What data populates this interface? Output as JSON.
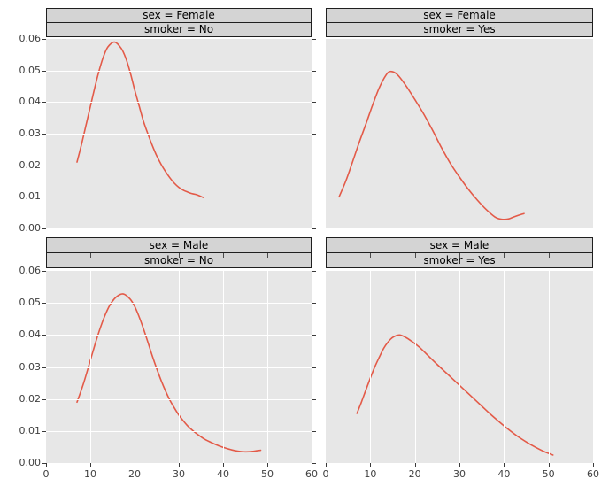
{
  "figure": {
    "colors": {
      "page_background": "#ffffff",
      "panel_background": "#e7e7e7",
      "strip_background": "#d4d4d4",
      "strip_border": "#1f1f1f",
      "gridline": "#ffffff",
      "curve": "#e35a48",
      "tick_mark": "#3a3a3a",
      "tick_label": "#3f3f3f",
      "strip_text": "#000000"
    }
  },
  "axes": {
    "xlim": [
      0,
      60
    ],
    "ylim": [
      0,
      0.06
    ],
    "xticks": [
      0,
      10,
      20,
      30,
      40,
      50,
      60
    ],
    "xtick_labels": [
      "0",
      "10",
      "20",
      "30",
      "40",
      "50",
      "60"
    ],
    "yticks": [
      0,
      0.01,
      0.02,
      0.03,
      0.04,
      0.05,
      0.06
    ],
    "ytick_labels": [
      "0.00",
      "0.01",
      "0.02",
      "0.03",
      "0.04",
      "0.05",
      "0.06"
    ]
  },
  "chart_data": [
    {
      "type": "line",
      "panel": "top-left",
      "facet_row_label": "sex = Female",
      "facet_col_label": "smoker = No",
      "xlim": [
        0,
        60
      ],
      "ylim": [
        0,
        0.06
      ],
      "grid_horizontal": true,
      "grid_vertical": false,
      "x": [
        7,
        8,
        9,
        10,
        11,
        12,
        13,
        14,
        15.5,
        17,
        18,
        19,
        20,
        21,
        22,
        23,
        24,
        25,
        26,
        27,
        28,
        29,
        30,
        31,
        32,
        33,
        34,
        35.5
      ],
      "y": [
        0.021,
        0.0265,
        0.0325,
        0.0385,
        0.0445,
        0.05,
        0.0545,
        0.0575,
        0.059,
        0.057,
        0.054,
        0.0495,
        0.044,
        0.039,
        0.034,
        0.03,
        0.0263,
        0.023,
        0.0203,
        0.018,
        0.016,
        0.0143,
        0.013,
        0.0121,
        0.0115,
        0.011,
        0.0107,
        0.0098
      ]
    },
    {
      "type": "line",
      "panel": "top-right",
      "facet_row_label": "sex = Female",
      "facet_col_label": "smoker = Yes",
      "xlim": [
        0,
        60
      ],
      "ylim": [
        0,
        0.06
      ],
      "grid_horizontal": false,
      "grid_vertical": false,
      "x": [
        3,
        4.5,
        6,
        7.5,
        9,
        10.5,
        12,
        13.5,
        14.5,
        16,
        18,
        20,
        22,
        24,
        26,
        28,
        30,
        32,
        34,
        36,
        38,
        39.5,
        41,
        42.5,
        44.5
      ],
      "y": [
        0.01,
        0.015,
        0.021,
        0.0272,
        0.033,
        0.039,
        0.0445,
        0.0485,
        0.0497,
        0.0488,
        0.0452,
        0.0408,
        0.0362,
        0.031,
        0.0255,
        0.0205,
        0.0163,
        0.0124,
        0.009,
        0.006,
        0.0036,
        0.0029,
        0.003,
        0.0038,
        0.0047
      ]
    },
    {
      "type": "line",
      "panel": "bottom-left",
      "facet_row_label": "sex = Male",
      "facet_col_label": "smoker = No",
      "xlim": [
        0,
        60
      ],
      "ylim": [
        0,
        0.06
      ],
      "grid_horizontal": true,
      "grid_vertical": true,
      "x": [
        7,
        8.5,
        10,
        11.5,
        13,
        14.5,
        16,
        17.5,
        19,
        20,
        21,
        22,
        23,
        24,
        25,
        26,
        27,
        28,
        29,
        30,
        31,
        32,
        33,
        34,
        35,
        36,
        37.5,
        39,
        40.5,
        42,
        43.5,
        45,
        46.5,
        48.5
      ],
      "y": [
        0.019,
        0.025,
        0.032,
        0.039,
        0.045,
        0.0495,
        0.052,
        0.0528,
        0.0512,
        0.049,
        0.0458,
        0.042,
        0.0378,
        0.0335,
        0.0295,
        0.0258,
        0.0225,
        0.0196,
        0.0172,
        0.015,
        0.0132,
        0.0116,
        0.0103,
        0.0092,
        0.0082,
        0.0073,
        0.0063,
        0.0054,
        0.0047,
        0.0041,
        0.0037,
        0.0035,
        0.0036,
        0.004
      ]
    },
    {
      "type": "line",
      "panel": "bottom-right",
      "facet_row_label": "sex = Male",
      "facet_col_label": "smoker = Yes",
      "xlim": [
        0,
        60
      ],
      "ylim": [
        0,
        0.06
      ],
      "grid_horizontal": false,
      "grid_vertical": true,
      "x": [
        7,
        8,
        9,
        10,
        11,
        12,
        13,
        14,
        15,
        16.5,
        18,
        19.5,
        21,
        23,
        25,
        27,
        29,
        31,
        33,
        35,
        37,
        39,
        41,
        43,
        45,
        47,
        49,
        51
      ],
      "y": [
        0.0155,
        0.019,
        0.0228,
        0.0265,
        0.03,
        0.033,
        0.0358,
        0.0378,
        0.0392,
        0.04,
        0.0392,
        0.0378,
        0.0362,
        0.0335,
        0.0308,
        0.0282,
        0.0256,
        0.023,
        0.0204,
        0.0178,
        0.0152,
        0.0128,
        0.0105,
        0.0084,
        0.0066,
        0.005,
        0.0036,
        0.0025
      ]
    }
  ]
}
